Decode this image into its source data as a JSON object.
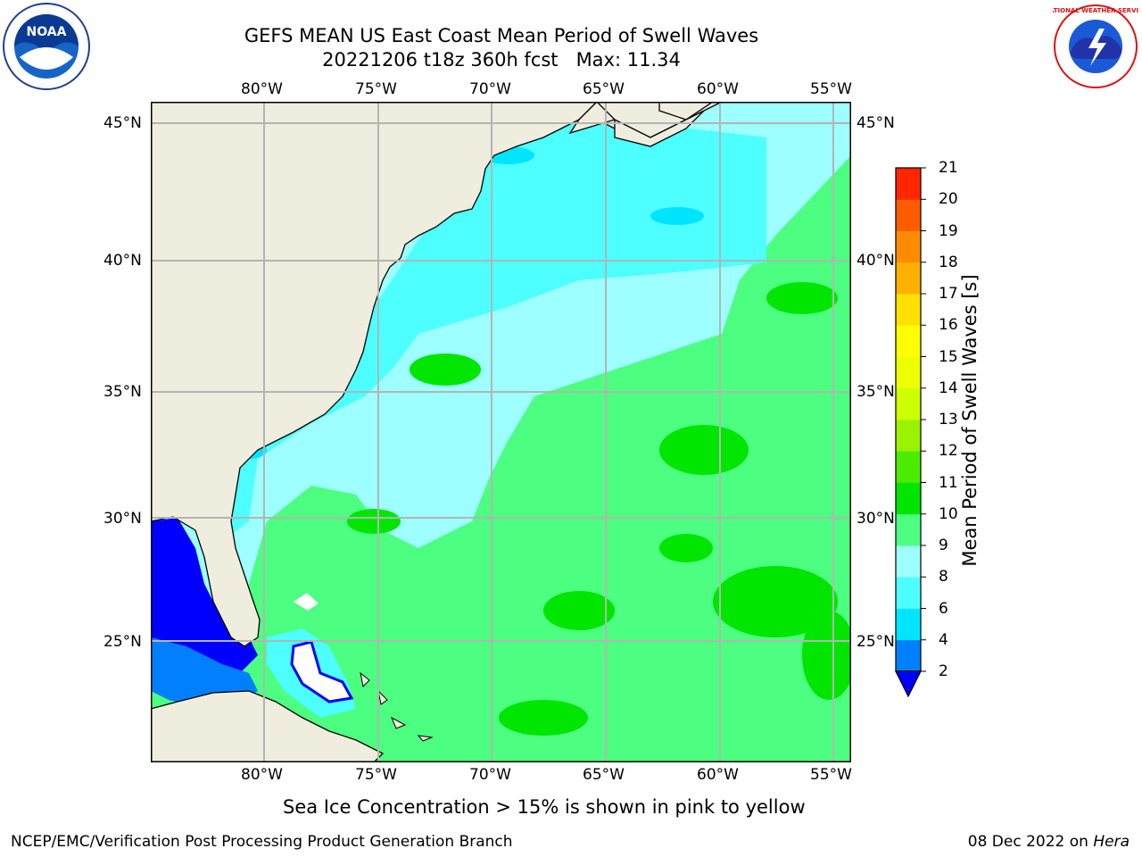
{
  "title": {
    "line1": "GEFS MEAN US East Coast Mean Period of Swell Waves",
    "line2": "20221206 t18z 360h fcst   Max: 11.34"
  },
  "logos": {
    "left": "noaa-logo",
    "right": "national-weather-service-logo",
    "left_text": "NOAA",
    "right_text": "NATIONAL WEATHER SERVICE"
  },
  "map": {
    "lon_labels": [
      "80°W",
      "75°W",
      "70°W",
      "65°W",
      "60°W",
      "55°W"
    ],
    "lat_labels": [
      "45°N",
      "40°N",
      "35°N",
      "30°N",
      "25°N"
    ],
    "lon_range": [
      -84.4,
      -54.6
    ],
    "lat_range": [
      20.5,
      46
    ],
    "grid": true,
    "colors": {
      "land": "#efedde",
      "coast": "#000000",
      "grid": "#b4b4b4",
      "ice_mask": "#ffffff"
    }
  },
  "colorbar": {
    "label": "Mean Period of Swell Waves [s]",
    "ticks": [
      "2",
      "4",
      "6",
      "8",
      "9",
      "10",
      "11",
      "12",
      "13",
      "14",
      "15",
      "16",
      "17",
      "18",
      "19",
      "20",
      "21"
    ],
    "colors": [
      "#0080ff",
      "#00e5ff",
      "#4dffff",
      "#9dffff",
      "#4dff80",
      "#00e600",
      "#4cec00",
      "#99f200",
      "#ccff00",
      "#eeff00",
      "#ffff00",
      "#ffe000",
      "#ffb000",
      "#ff8c00",
      "#ff5c00",
      "#ff2600"
    ],
    "under_color": "#0000ff",
    "extend": "min"
  },
  "note": "Sea Ice Concentration > 15% is shown in pink to yellow",
  "credit": "NCEP/EMC/Verification Post Processing Product Generation Branch",
  "date": {
    "text": "08 Dec 2022 on ",
    "host": "Hera"
  }
}
